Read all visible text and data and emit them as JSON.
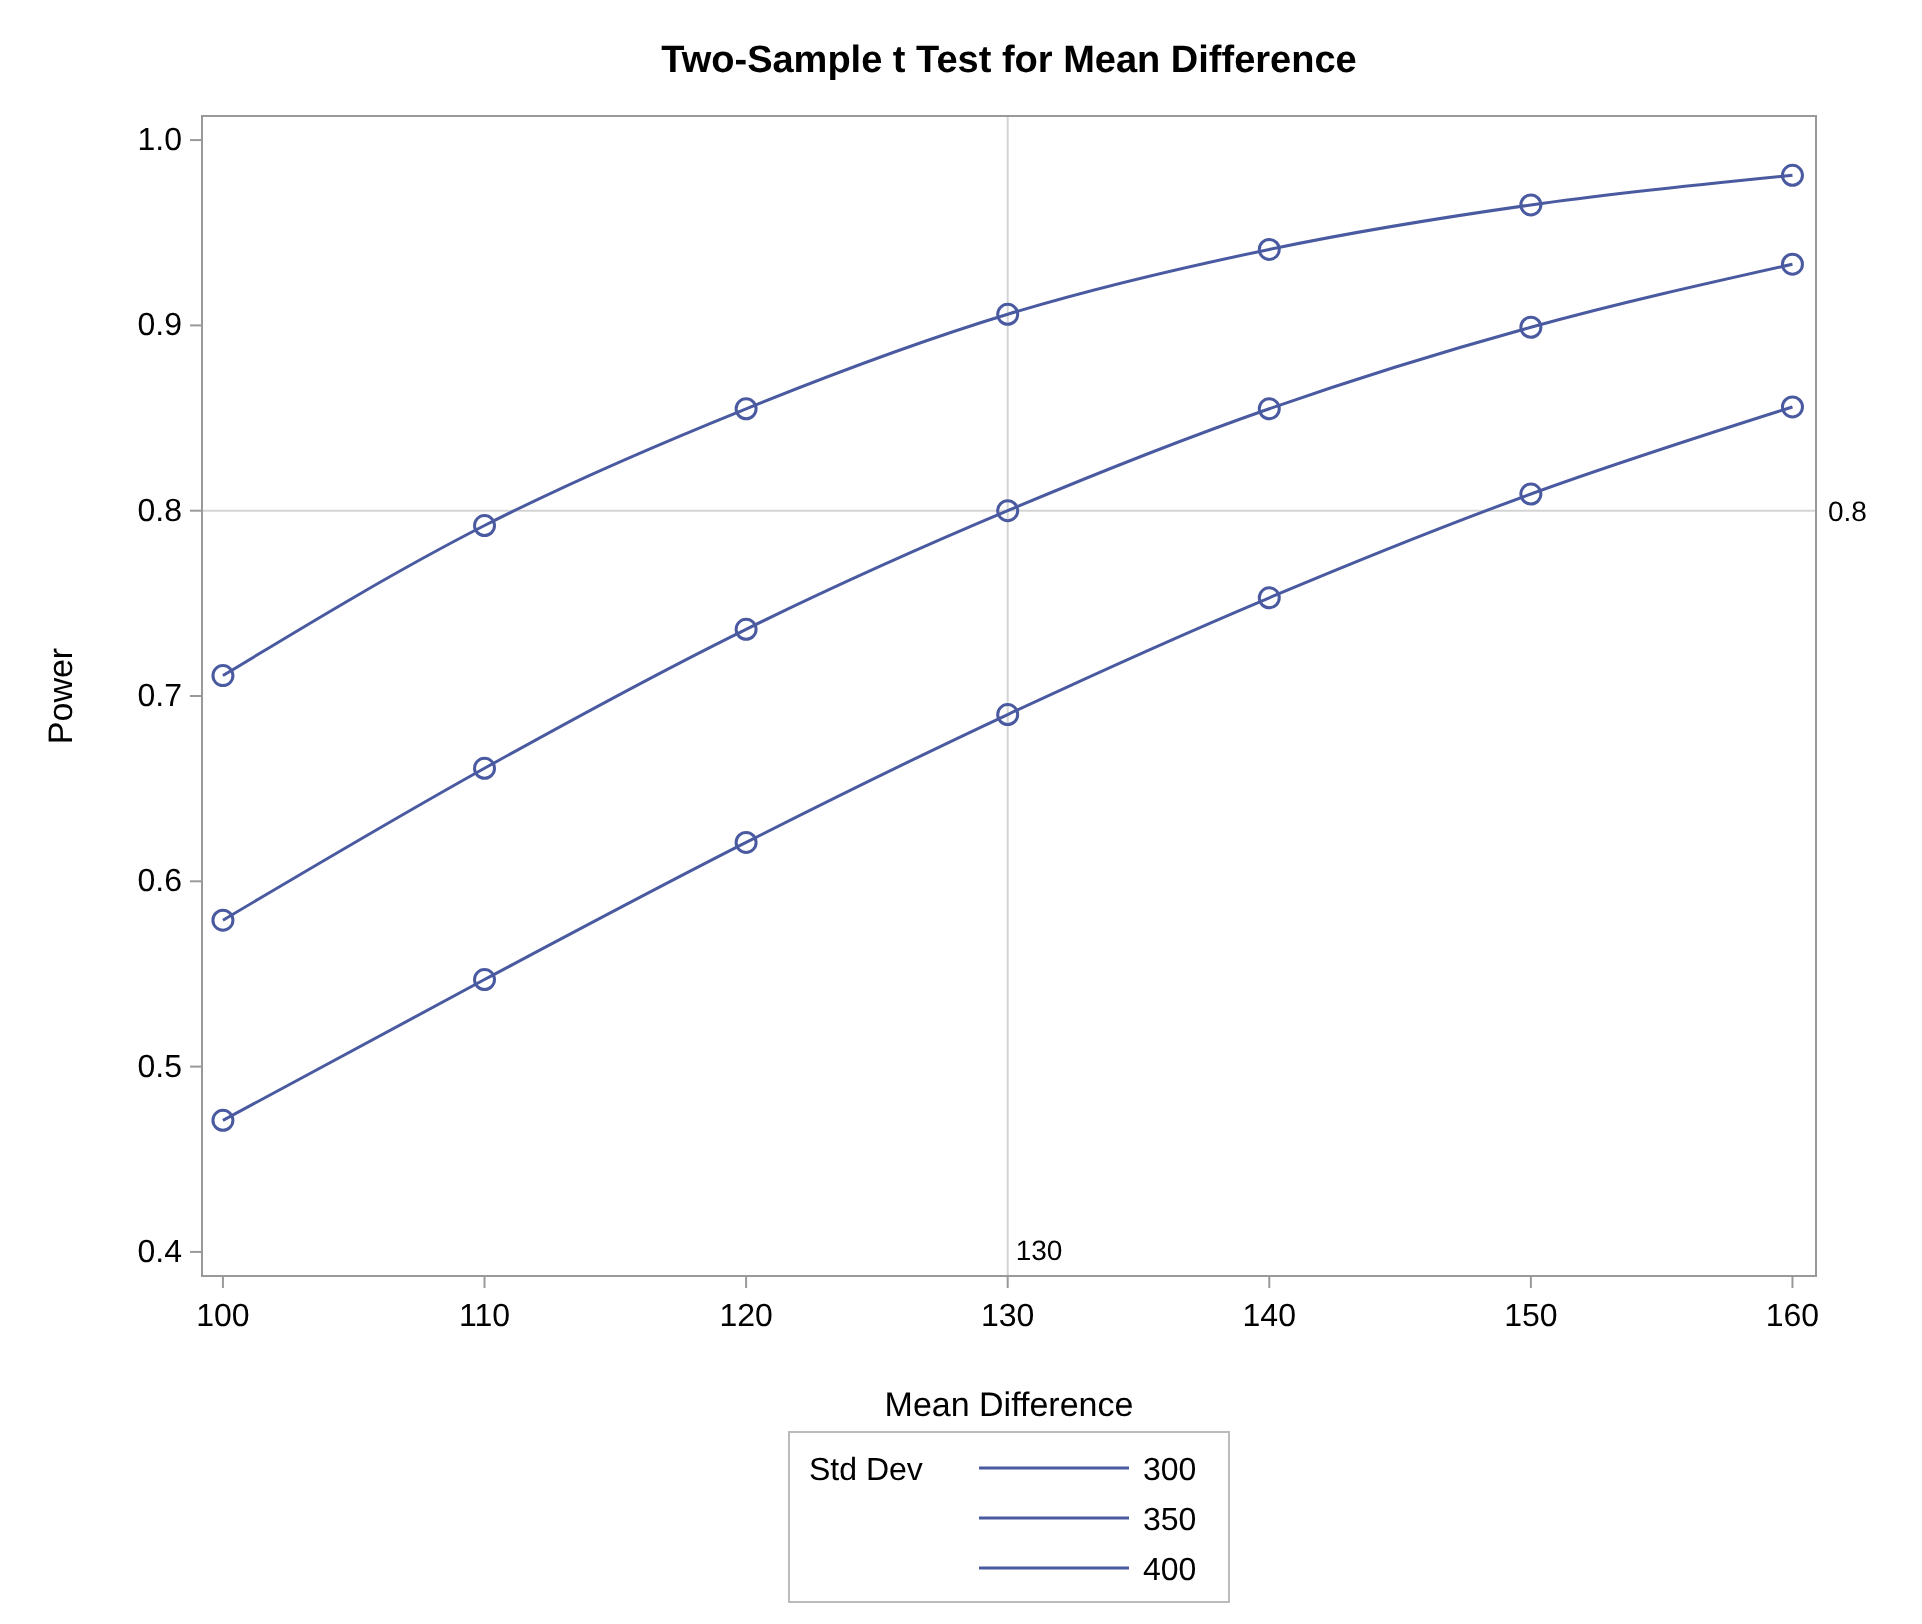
{
  "chart_data": {
    "type": "line",
    "title": "Two-Sample t Test for Mean Difference",
    "xlabel": "Mean Difference",
    "ylabel": "Power",
    "legend_title": "Std Dev",
    "x": [
      100,
      110,
      120,
      130,
      140,
      150,
      160
    ],
    "xlim": [
      99.2,
      160.9
    ],
    "xticks": [
      100,
      110,
      120,
      130,
      140,
      150,
      160
    ],
    "ylim": [
      0.387,
      1.013
    ],
    "yticks": [
      {
        "value": 0.4,
        "label": "0.4"
      },
      {
        "value": 0.5,
        "label": "0.5"
      },
      {
        "value": 0.6,
        "label": "0.6"
      },
      {
        "value": 0.7,
        "label": "0.7"
      },
      {
        "value": 0.8,
        "label": "0.8"
      },
      {
        "value": 0.9,
        "label": "0.9"
      },
      {
        "value": 1.0,
        "label": "1.0"
      }
    ],
    "marker": "circle",
    "line_style": "solid",
    "grid": false,
    "legend": "bottom",
    "ref_lines": [
      {
        "axis": "x",
        "value": 130,
        "label": "130",
        "color": "#d4d4d4"
      },
      {
        "axis": "y",
        "value": 0.8,
        "label": "0.8",
        "color": "#d4d4d4"
      }
    ],
    "series": [
      {
        "name": "300",
        "color": "#4a5aa0",
        "values": [
          0.711,
          0.792,
          0.855,
          0.906,
          0.941,
          0.965,
          0.981
        ]
      },
      {
        "name": "350",
        "color": "#4a5aa0",
        "values": [
          0.579,
          0.661,
          0.736,
          0.8,
          0.855,
          0.899,
          0.933
        ]
      },
      {
        "name": "400",
        "color": "#4a5aa0",
        "values": [
          0.471,
          0.547,
          0.621,
          0.69,
          0.753,
          0.809,
          0.856
        ]
      }
    ]
  }
}
